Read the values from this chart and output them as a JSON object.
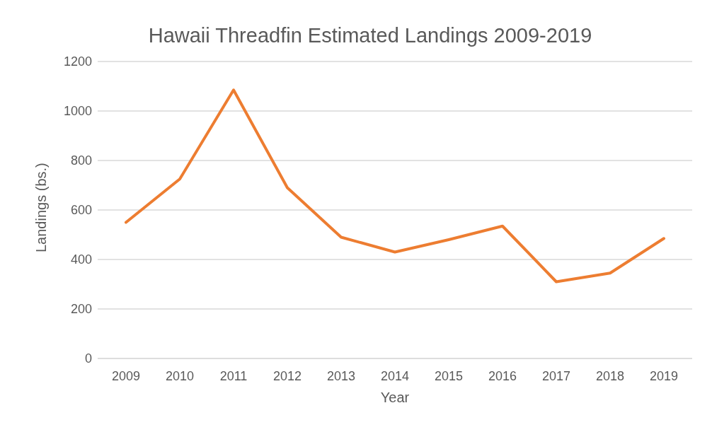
{
  "chart_data": {
    "type": "line",
    "title": "Hawaii Threadfin Estimated Landings 2009-2019",
    "xlabel": "Year",
    "ylabel": "Landings (bs.)",
    "categories": [
      "2009",
      "2010",
      "2011",
      "2012",
      "2013",
      "2014",
      "2015",
      "2016",
      "2017",
      "2018",
      "2019"
    ],
    "series": [
      {
        "color": "#ed7d31",
        "values": [
          550,
          725,
          1085,
          690,
          490,
          430,
          480,
          535,
          310,
          345,
          485
        ]
      }
    ],
    "ylim": [
      0,
      1200
    ],
    "yticks": [
      0,
      200,
      400,
      600,
      800,
      1000,
      1200
    ],
    "grid": "y",
    "marker": "none",
    "line_style": "solid"
  }
}
